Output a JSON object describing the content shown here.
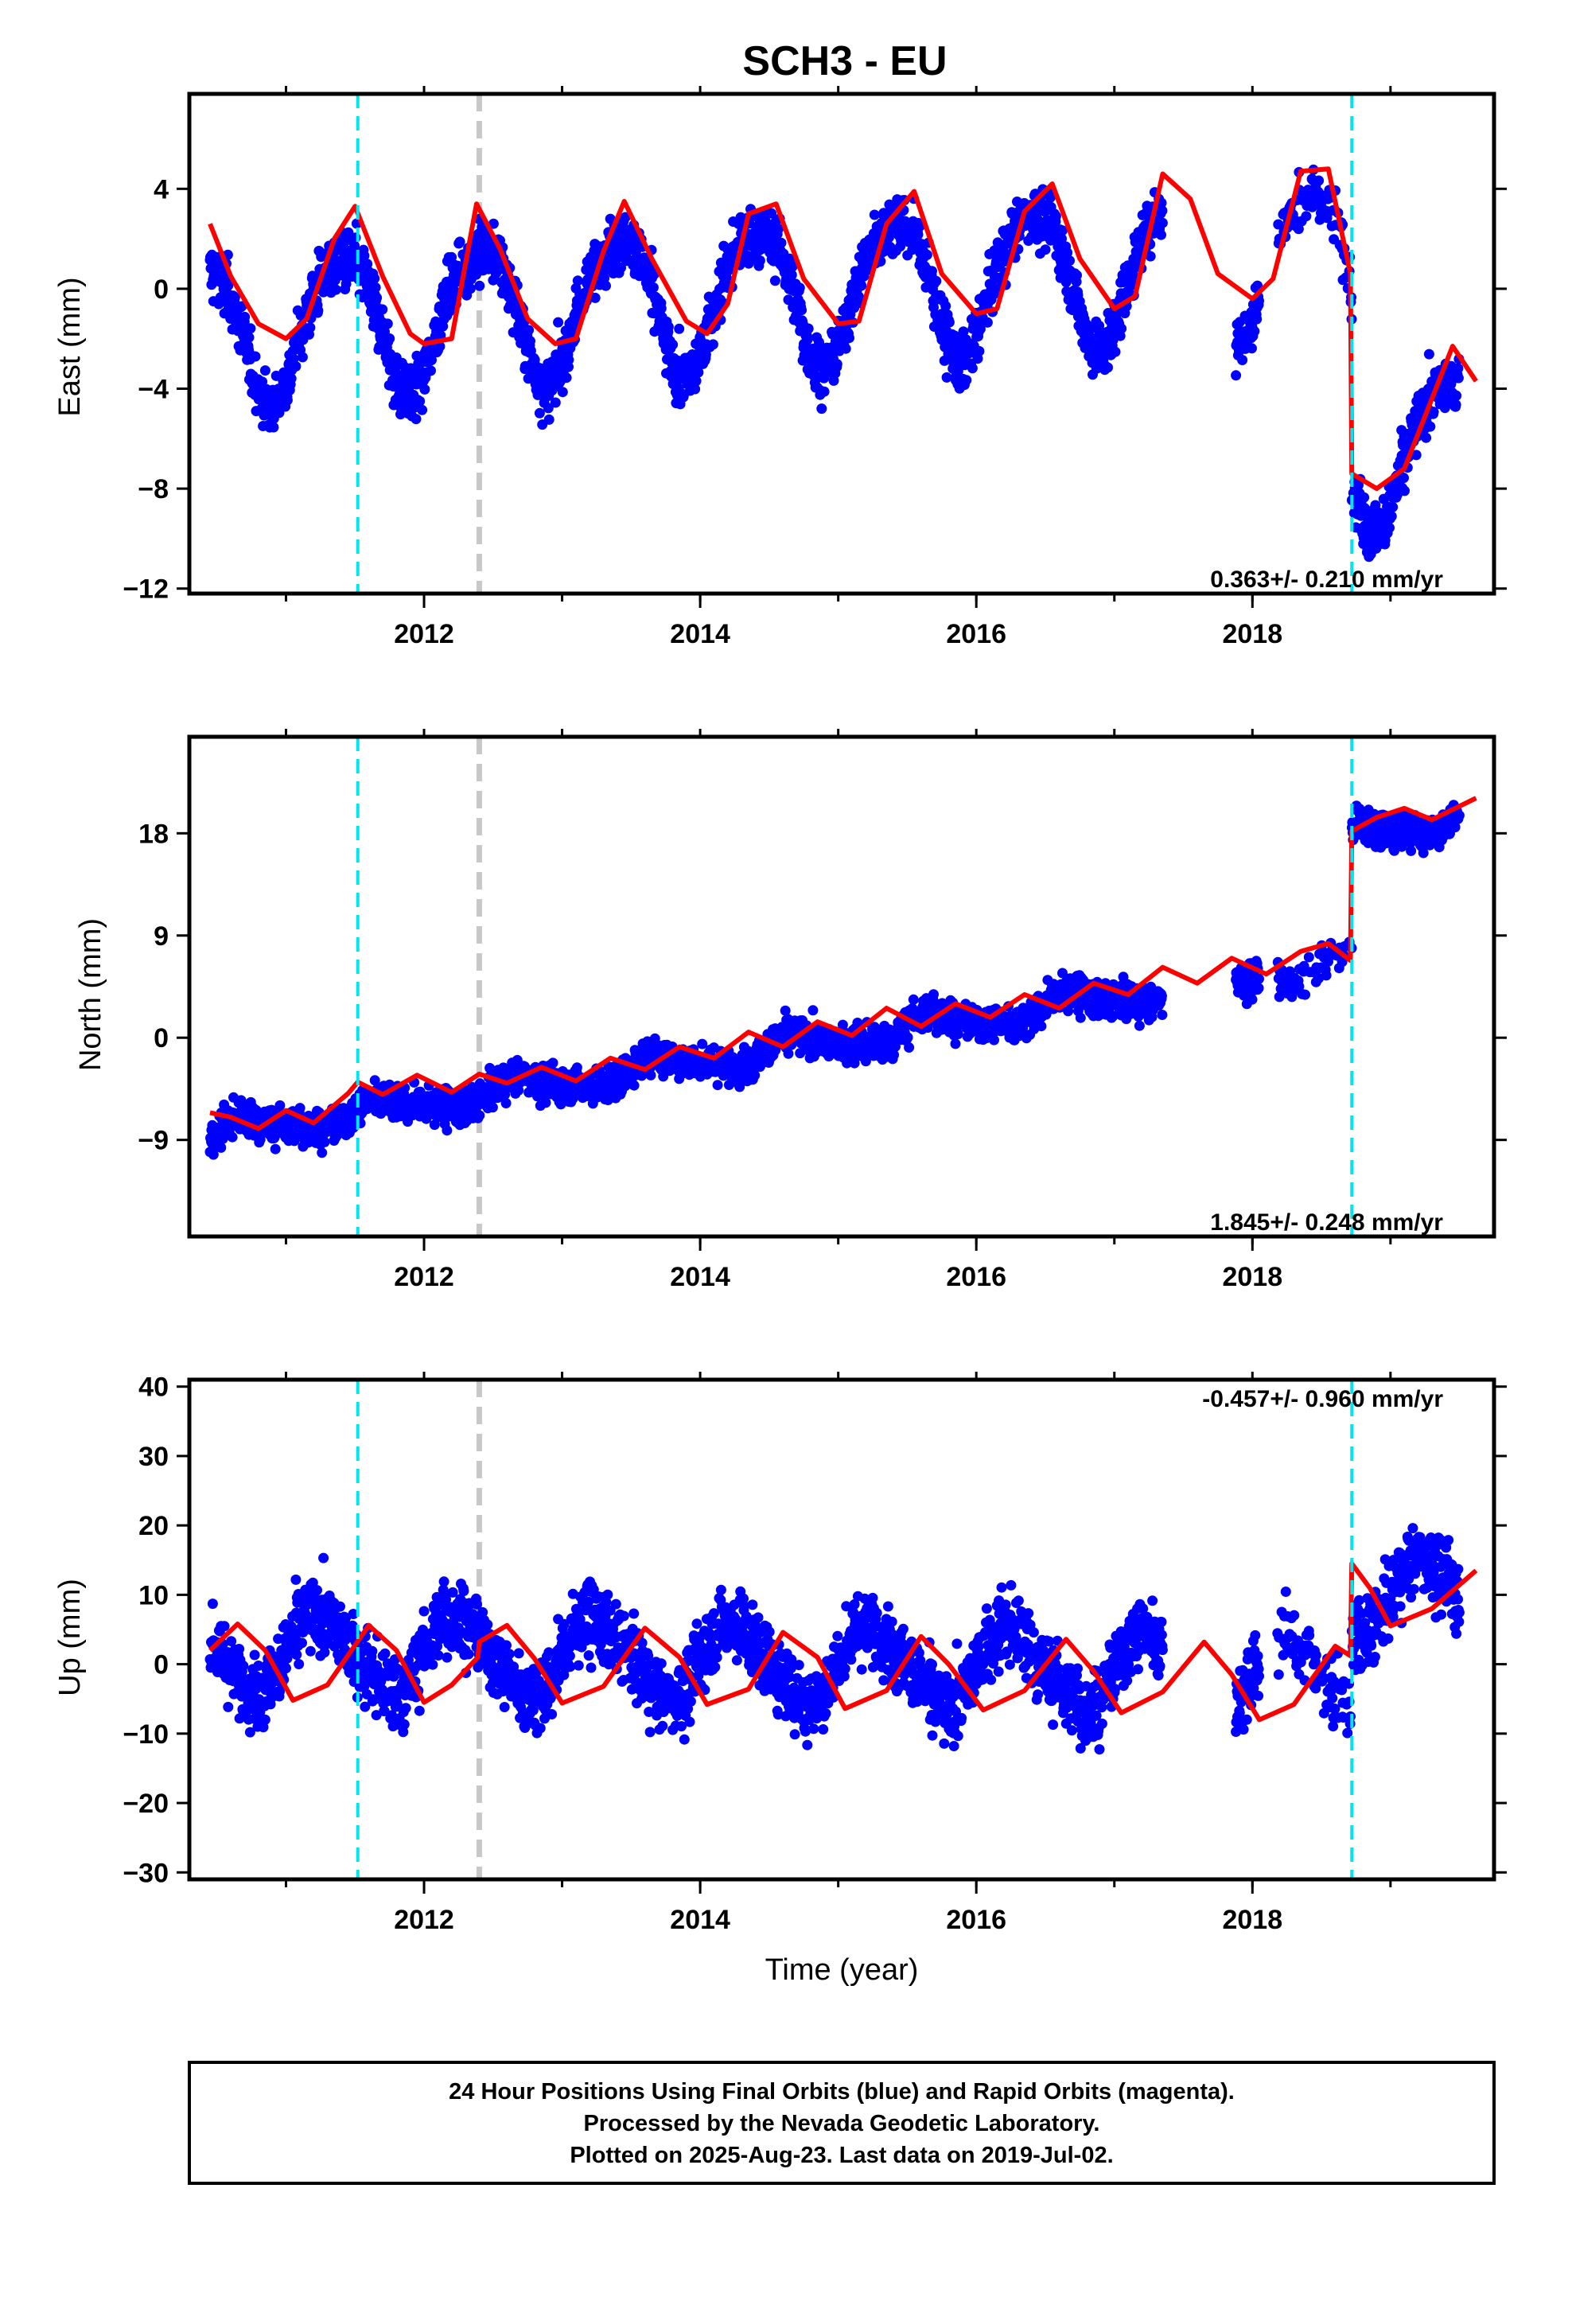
{
  "title": "SCH3 - EU",
  "xlabel": "Time (year)",
  "footer": {
    "line1": "24 Hour Positions Using Final Orbits (blue) and Rapid Orbits (magenta).",
    "line2": "Processed by the Nevada Geodetic Laboratory.",
    "line3": "Plotted on 2025-Aug-23. Last data on 2019-Jul-02."
  },
  "colors": {
    "data_points": "#0000ff",
    "model_fit": "#ff0000",
    "equipment_change": "#00e5ee",
    "other_event": "#c8c8c8"
  },
  "chart_data": [
    {
      "type": "scatter",
      "panel": "east",
      "ylabel": "East (mm)",
      "rate_label": "0.363+/- 0.210 mm/yr",
      "xlim": [
        2010.3,
        2019.75
      ],
      "ylim": [
        -12.2,
        7.8
      ],
      "x_ticks": [
        2012,
        2014,
        2016,
        2018
      ],
      "y_ticks": [
        -12,
        -8,
        -4,
        0,
        4
      ],
      "y_tick_labels": [
        "−12",
        "−8",
        "−4",
        "0",
        "4"
      ],
      "events_cyan": [
        2011.52,
        2018.72
      ],
      "events_gray": [
        2012.4
      ],
      "series": [
        {
          "role": "daily positions",
          "gaps": [
            [
              2017.35,
              2017.88
            ],
            [
              2018.05,
              2018.18
            ]
          ],
          "model": {
            "offset": 0.0,
            "rate": 0.363,
            "amp_annual": 2.8,
            "phase_annual": 0.0,
            "amp_semi": 0.4,
            "steps": [
              [
                2018.72,
                -7.9
              ]
            ],
            "noise": 1.1
          }
        },
        {
          "role": "model fit",
          "x": [
            2010.45,
            2010.6,
            2010.8,
            2011.0,
            2011.15,
            2011.35,
            2011.5,
            2011.7,
            2011.9,
            2012.0,
            2012.2,
            2012.38,
            2012.55,
            2012.75,
            2012.95,
            2013.1,
            2013.3,
            2013.45,
            2013.65,
            2013.9,
            2014.05,
            2014.2,
            2014.35,
            2014.55,
            2014.75,
            2015.0,
            2015.15,
            2015.35,
            2015.55,
            2015.75,
            2016.0,
            2016.15,
            2016.35,
            2016.55,
            2016.75,
            2017.0,
            2017.15,
            2017.35,
            2017.55,
            2017.75,
            2018.0,
            2018.15,
            2018.35,
            2018.55,
            2018.71,
            2018.72,
            2018.9,
            2019.1,
            2019.3,
            2019.45,
            2019.62
          ],
          "y": [
            2.6,
            0.5,
            -1.4,
            -2.0,
            -1.2,
            2.0,
            3.3,
            0.5,
            -1.8,
            -2.2,
            -2.0,
            3.4,
            1.6,
            -1.2,
            -2.2,
            -2.0,
            1.5,
            3.5,
            1.2,
            -1.3,
            -1.8,
            -0.6,
            3.0,
            3.4,
            0.4,
            -1.4,
            -1.3,
            2.6,
            3.9,
            0.6,
            -1.0,
            -0.8,
            3.1,
            4.2,
            1.2,
            -0.8,
            -0.3,
            4.6,
            3.6,
            0.6,
            -0.4,
            0.4,
            4.7,
            4.8,
            0.6,
            -7.4,
            -8.0,
            -7.2,
            -4.4,
            -2.3,
            -3.7
          ]
        }
      ]
    },
    {
      "type": "scatter",
      "panel": "north",
      "ylabel": "North (mm)",
      "rate_label": "1.845+/- 0.248 mm/yr",
      "xlim": [
        2010.3,
        2019.75
      ],
      "ylim": [
        -17.5,
        26.5
      ],
      "x_ticks": [
        2012,
        2014,
        2016,
        2018
      ],
      "y_ticks": [
        -9,
        0,
        9,
        18
      ],
      "y_tick_labels": [
        "−9",
        "0",
        "9",
        "18"
      ],
      "events_cyan": [
        2011.52,
        2018.72
      ],
      "events_gray": [
        2012.4
      ],
      "series": [
        {
          "role": "daily positions",
          "gaps": [
            [
              2017.35,
              2017.88
            ],
            [
              2018.05,
              2018.18
            ]
          ],
          "model": {
            "offset": -0.2,
            "rate": 1.845,
            "amp_annual": 0.9,
            "phase_annual": 0.3,
            "amp_semi": 0.3,
            "steps": [
              [
                2018.72,
                11.3
              ]
            ],
            "noise": 1.5
          }
        },
        {
          "role": "model fit",
          "x": [
            2010.45,
            2010.6,
            2010.8,
            2011.0,
            2011.2,
            2011.45,
            2011.52,
            2011.7,
            2011.95,
            2012.2,
            2012.4,
            2012.6,
            2012.85,
            2013.1,
            2013.35,
            2013.6,
            2013.85,
            2014.1,
            2014.35,
            2014.6,
            2014.85,
            2015.1,
            2015.35,
            2015.6,
            2015.85,
            2016.1,
            2016.35,
            2016.6,
            2016.85,
            2017.1,
            2017.35,
            2017.6,
            2017.85,
            2018.1,
            2018.35,
            2018.55,
            2018.71,
            2018.72,
            2018.9,
            2019.1,
            2019.3,
            2019.62
          ],
          "y": [
            -6.6,
            -7.0,
            -8.0,
            -6.4,
            -7.5,
            -4.9,
            -3.9,
            -5.0,
            -3.3,
            -4.8,
            -3.2,
            -4.0,
            -2.6,
            -3.8,
            -1.8,
            -2.8,
            -0.8,
            -1.8,
            0.5,
            -0.8,
            1.4,
            0.2,
            2.6,
            1.0,
            3.0,
            1.8,
            3.8,
            2.6,
            4.8,
            3.8,
            6.2,
            4.8,
            7.0,
            5.6,
            7.6,
            8.3,
            6.8,
            18.2,
            19.4,
            20.2,
            19.2,
            21.1
          ]
        }
      ]
    },
    {
      "type": "scatter",
      "panel": "up",
      "ylabel": "Up (mm)",
      "rate_label": "-0.457+/- 0.960 mm/yr",
      "xlim": [
        2010.3,
        2019.75
      ],
      "ylim": [
        -31,
        41
      ],
      "x_ticks": [
        2012,
        2014,
        2016,
        2018
      ],
      "y_ticks": [
        -30,
        -20,
        -10,
        0,
        10,
        20,
        30,
        40
      ],
      "y_tick_labels": [
        "−30",
        "−20",
        "−10",
        "0",
        "10",
        "20",
        "30",
        "40"
      ],
      "events_cyan": [
        2011.52,
        2018.72
      ],
      "events_gray": [
        2012.4
      ],
      "series": [
        {
          "role": "daily positions",
          "gaps": [
            [
              2017.35,
              2017.88
            ],
            [
              2018.05,
              2018.18
            ]
          ],
          "model": {
            "offset": 0.0,
            "rate": -0.457,
            "amp_annual": 5.5,
            "phase_annual": 0.85,
            "amp_semi": 0.8,
            "steps": [
              [
                2018.72,
                11.5
              ]
            ],
            "noise": 5.0
          }
        },
        {
          "role": "model fit",
          "x": [
            2010.45,
            2010.65,
            2010.85,
            2011.05,
            2011.3,
            2011.6,
            2011.8,
            2012.0,
            2012.2,
            2012.39,
            2012.4,
            2012.6,
            2012.8,
            2013.0,
            2013.3,
            2013.6,
            2013.85,
            2014.05,
            2014.35,
            2014.6,
            2014.85,
            2015.05,
            2015.35,
            2015.6,
            2015.8,
            2016.05,
            2016.35,
            2016.65,
            2016.85,
            2017.05,
            2017.35,
            2017.65,
            2017.85,
            2018.05,
            2018.3,
            2018.6,
            2018.71,
            2018.72,
            2018.85,
            2019.0,
            2019.3,
            2019.62
          ],
          "y": [
            2.0,
            5.8,
            2.0,
            -5.2,
            -3.0,
            5.6,
            2.0,
            -5.5,
            -3.0,
            1.0,
            3.2,
            5.6,
            0.8,
            -5.6,
            -3.2,
            5.2,
            1.0,
            -5.8,
            -3.6,
            4.6,
            1.0,
            -6.4,
            -3.8,
            4.0,
            0.0,
            -6.6,
            -3.8,
            3.6,
            -1.0,
            -7.0,
            -4.0,
            3.2,
            -1.5,
            -8.0,
            -5.8,
            2.6,
            1.2,
            14.5,
            11.0,
            5.5,
            8.0,
            13.5
          ]
        }
      ]
    }
  ]
}
